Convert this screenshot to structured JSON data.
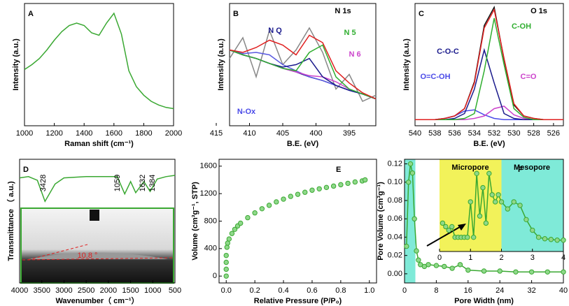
{
  "chart_data": [
    {
      "type": "line",
      "panel_label": "A",
      "xlabel": "Raman shift (cm⁻¹)",
      "ylabel": "Intensity (a.u.)",
      "x": [
        1000,
        1050,
        1100,
        1150,
        1200,
        1250,
        1300,
        1350,
        1400,
        1450,
        1500,
        1550,
        1600,
        1650,
        1700,
        1750,
        1800,
        1850,
        1900,
        1950,
        2000
      ],
      "series": [
        {
          "color": "#3aa832",
          "values": [
            46,
            50,
            55,
            62,
            70,
            77,
            82,
            84,
            82,
            76,
            74,
            84,
            92,
            75,
            45,
            32,
            25,
            20,
            17,
            15,
            14
          ]
        }
      ],
      "xlim": [
        1000,
        2000
      ],
      "xticks": [
        1000,
        1200,
        1400,
        1600,
        1800,
        2000
      ],
      "ylim": [
        0,
        100
      ]
    },
    {
      "type": "line",
      "panel_label": "B",
      "xlabel": "B.E. (eV)",
      "ylabel": "Intensity (a.u.)",
      "annotations": [
        "N 1s",
        "N Q",
        "N 5",
        "N 6",
        "N-Ox"
      ],
      "x": [
        413,
        411,
        409,
        407,
        405,
        403,
        401,
        399,
        397,
        395,
        393,
        391
      ],
      "series": [
        {
          "color": "#888888",
          "values": [
            55,
            72,
            40,
            78,
            50,
            62,
            80,
            60,
            30,
            42,
            20,
            25
          ]
        },
        {
          "color": "#1a1a8c",
          "values": [
            62,
            58,
            55,
            51,
            47,
            44,
            40,
            37,
            33,
            29,
            26,
            22
          ]
        },
        {
          "color": "#5a5ae0",
          "values": [
            62,
            59,
            60,
            58,
            50,
            45,
            40,
            37,
            33,
            29,
            26,
            22
          ]
        },
        {
          "color": "#cc44cc",
          "values": [
            62,
            58,
            55,
            51,
            47,
            44,
            41,
            40,
            36,
            30,
            26,
            22
          ]
        },
        {
          "color": "#1a1a8c",
          "values": [
            62,
            58,
            55,
            51,
            48,
            50,
            55,
            40,
            33,
            29,
            26,
            22
          ]
        },
        {
          "color": "#2fae2f",
          "values": [
            62,
            58,
            55,
            51,
            47,
            45,
            60,
            66,
            40,
            30,
            26,
            22
          ]
        },
        {
          "color": "#e02020",
          "values": [
            62,
            60,
            64,
            70,
            66,
            58,
            74,
            68,
            45,
            35,
            27,
            22
          ]
        }
      ],
      "xlim": [
        413,
        391
      ],
      "xticks": [
        415,
        410,
        405,
        400,
        395
      ],
      "ylim": [
        0,
        100
      ]
    },
    {
      "type": "line",
      "panel_label": "C",
      "xlabel": "B.E. (eV)",
      "ylabel": "Intensity (a.u.)",
      "annotations": [
        "O 1s",
        "C-O-C",
        "C-OH",
        "O=C-OH",
        "C=O"
      ],
      "x": [
        540,
        539,
        538,
        537,
        536,
        535,
        534,
        533,
        532,
        531,
        530,
        529,
        528,
        527,
        526,
        525
      ],
      "series": [
        {
          "color": "#111111",
          "values": [
            5,
            5,
            5,
            6,
            8,
            14,
            36,
            82,
            97,
            54,
            17,
            8,
            6,
            5,
            5,
            5
          ]
        },
        {
          "color": "#4a4ae8",
          "values": [
            5,
            5,
            5,
            6,
            8,
            12,
            13,
            9,
            6,
            5,
            5,
            5,
            5,
            5,
            5,
            5
          ]
        },
        {
          "color": "#cc44cc",
          "values": [
            5,
            5,
            5,
            5,
            5,
            5,
            6,
            8,
            14,
            16,
            9,
            6,
            5,
            5,
            5,
            5
          ]
        },
        {
          "color": "#1a1a8c",
          "values": [
            5,
            5,
            5,
            5,
            6,
            10,
            30,
            62,
            35,
            10,
            6,
            5,
            5,
            5,
            5,
            5
          ]
        },
        {
          "color": "#2fae2f",
          "values": [
            5,
            5,
            5,
            5,
            5,
            6,
            10,
            45,
            88,
            50,
            14,
            7,
            5,
            5,
            5,
            5
          ]
        },
        {
          "color": "#e02020",
          "values": [
            5,
            5,
            5,
            6,
            8,
            14,
            35,
            80,
            95,
            55,
            18,
            8,
            6,
            5,
            5,
            5
          ]
        }
      ],
      "xlim": [
        540,
        525
      ],
      "xticks": [
        540,
        538,
        536,
        534,
        532,
        530,
        528,
        526
      ],
      "ylim": [
        0,
        100
      ]
    },
    {
      "type": "line",
      "panel_label": "D",
      "xlabel": "Wavenumber（ cm⁻¹）",
      "ylabel": "Transmittance （ a.u.)",
      "annotations": [
        "3428",
        "1059",
        "1632",
        "1384",
        "10.8 °"
      ],
      "x": [
        4000,
        3800,
        3600,
        3428,
        3200,
        3000,
        2500,
        2000,
        1800,
        1632,
        1500,
        1384,
        1200,
        1059,
        900,
        700,
        500
      ],
      "series": [
        {
          "color": "#3aa832",
          "values": [
            85,
            86,
            83,
            66,
            80,
            85,
            86,
            86,
            86,
            72,
            82,
            73,
            82,
            74,
            84,
            86,
            87
          ]
        }
      ],
      "xlim": [
        4000,
        500
      ],
      "xticks": [
        4000,
        3500,
        3000,
        2500,
        2000,
        1500,
        1000,
        500
      ],
      "ylim": [
        0,
        100
      ]
    },
    {
      "type": "scatter",
      "panel_label": "E",
      "xlabel": "Relative Pressure (P/P₀)",
      "ylabel": "Volume (cm³g⁻¹, STP)",
      "x": [
        0,
        0,
        0,
        0,
        0.005,
        0.01,
        0.02,
        0.04,
        0.06,
        0.08,
        0.1,
        0.15,
        0.2,
        0.25,
        0.3,
        0.35,
        0.4,
        0.45,
        0.5,
        0.55,
        0.6,
        0.65,
        0.7,
        0.75,
        0.8,
        0.85,
        0.9,
        0.95,
        0.97
      ],
      "series": [
        {
          "color": "#3aa832",
          "values": [
            0,
            100,
            200,
            300,
            420,
            480,
            540,
            620,
            680,
            730,
            770,
            850,
            920,
            980,
            1030,
            1080,
            1120,
            1160,
            1190,
            1220,
            1250,
            1270,
            1290,
            1310,
            1330,
            1350,
            1370,
            1385,
            1400
          ]
        }
      ],
      "xlim": [
        -0.05,
        1.05
      ],
      "xticks": [
        {
          "value": 0,
          "label": "0.0"
        },
        {
          "value": 0.2,
          "label": "0.2"
        },
        {
          "value": 0.4,
          "label": "0.4"
        },
        {
          "value": 0.6,
          "label": "0.6"
        },
        {
          "value": 0.8,
          "label": "0.8"
        },
        {
          "value": 1,
          "label": "1.0"
        }
      ],
      "ylim": [
        -100,
        1700
      ],
      "yticks": [
        0,
        400,
        800,
        1200,
        1600
      ]
    },
    {
      "type": "line",
      "markers": true,
      "panel_label": "F",
      "xlabel": "Pore Width (nm)",
      "ylabel": "Pore Volume (cm³g⁻¹)",
      "x": [
        0.5,
        1,
        1.5,
        2,
        2.5,
        3,
        3.5,
        4,
        5,
        6,
        8,
        10,
        12,
        14,
        16,
        20,
        24,
        28,
        32,
        36,
        40
      ],
      "series": [
        {
          "color": "#3aa832",
          "values": [
            0.03,
            0.1,
            0.12,
            0.11,
            0.06,
            0.025,
            0.015,
            0.01,
            0.008,
            0.01,
            0.009,
            0.008,
            0.006,
            0.01,
            0.004,
            0.003,
            0.003,
            0.002,
            0.002,
            0.002,
            0.002
          ]
        }
      ],
      "xlim": [
        0,
        40
      ],
      "xticks": [
        0,
        8,
        16,
        24,
        32,
        40
      ],
      "ylim": [
        -0.01,
        0.125
      ],
      "yticks": [
        {
          "value": 0,
          "label": "0.00"
        },
        {
          "value": 0.02,
          "label": "0.02"
        },
        {
          "value": 0.04,
          "label": "0.04"
        },
        {
          "value": 0.06,
          "label": "0.06"
        },
        {
          "value": 0.08,
          "label": "0.08"
        },
        {
          "value": 0.1,
          "label": "0.10"
        },
        {
          "value": 0.12,
          "label": "0.12"
        }
      ]
    },
    {
      "type": "line",
      "markers": true,
      "annotations": [
        "Micropore",
        "Mesopore"
      ],
      "x": [
        0.1,
        0.2,
        0.3,
        0.4,
        0.5,
        0.6,
        0.7,
        0.8,
        0.9,
        1.0,
        1.1,
        1.2,
        1.3,
        1.4,
        1.5,
        1.6,
        1.7,
        1.8,
        1.9,
        2.0,
        2.2,
        2.4,
        2.6,
        2.8,
        3.0,
        3.2,
        3.4,
        3.6,
        3.8,
        4.0
      ],
      "series": [
        {
          "color": "#3aa832",
          "values": [
            0.04,
            0.035,
            0.03,
            0.035,
            0.02,
            0.02,
            0.02,
            0.02,
            0.02,
            0.07,
            0.02,
            0.11,
            0.05,
            0.09,
            0.04,
            0.11,
            0.08,
            0.07,
            0.08,
            0.07,
            0.06,
            0.07,
            0.065,
            0.045,
            0.03,
            0.02,
            0.018,
            0.017,
            0.016,
            0.016
          ]
        }
      ],
      "xlim": [
        0,
        4
      ],
      "xticks": [
        0,
        1,
        2,
        3,
        4
      ],
      "ylim": [
        0,
        0.13
      ]
    }
  ]
}
